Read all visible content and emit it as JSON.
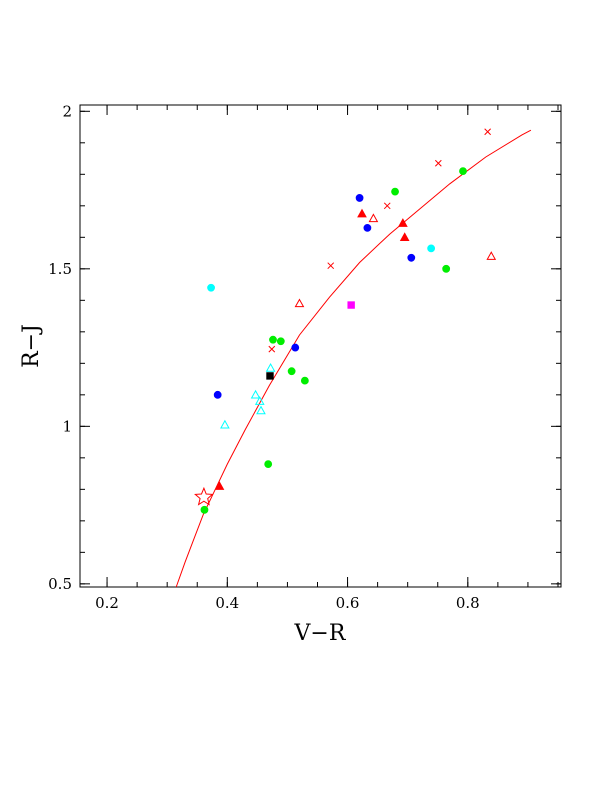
{
  "chart_data": {
    "type": "scatter",
    "xlabel": "V−R",
    "ylabel": "R−J",
    "xlim": [
      0.155,
      0.955
    ],
    "ylim": [
      0.49,
      2.02
    ],
    "x_ticks": [
      {
        "value": 0.2,
        "label": "0.2"
      },
      {
        "value": 0.4,
        "label": "0.4"
      },
      {
        "value": 0.6,
        "label": "0.6"
      },
      {
        "value": 0.8,
        "label": "0.8"
      }
    ],
    "y_ticks": [
      {
        "value": 0.5,
        "label": "0.5"
      },
      {
        "value": 1.0,
        "label": "1"
      },
      {
        "value": 1.5,
        "label": "1.5"
      },
      {
        "value": 2.0,
        "label": "2"
      }
    ],
    "x_minor_step": 0.05,
    "y_minor_step": 0.1,
    "colors": {
      "red": "#ff0000",
      "green": "#00ee00",
      "blue": "#0000ff",
      "cyan": "#00ffff",
      "magenta": "#ff00ff",
      "black": "#000000"
    },
    "curve": {
      "color": "#ff0000",
      "points": [
        [
          0.315,
          0.49
        ],
        [
          0.33,
          0.57
        ],
        [
          0.345,
          0.645
        ],
        [
          0.36,
          0.72
        ],
        [
          0.38,
          0.8
        ],
        [
          0.4,
          0.88
        ],
        [
          0.43,
          0.99
        ],
        [
          0.47,
          1.13
        ],
        [
          0.52,
          1.29
        ],
        [
          0.57,
          1.41
        ],
        [
          0.62,
          1.52
        ],
        [
          0.67,
          1.61
        ],
        [
          0.72,
          1.69
        ],
        [
          0.77,
          1.77
        ],
        [
          0.83,
          1.855
        ],
        [
          0.89,
          1.925
        ],
        [
          0.905,
          1.94
        ]
      ],
      "cross_markers": [
        [
          0.474,
          1.245
        ],
        [
          0.572,
          1.51
        ],
        [
          0.666,
          1.7
        ],
        [
          0.751,
          1.835
        ],
        [
          0.833,
          1.935
        ]
      ]
    },
    "series": [
      {
        "marker": "circle",
        "color": "green",
        "filled": true,
        "points": [
          [
            0.362,
            0.735
          ],
          [
            0.468,
            0.88
          ],
          [
            0.476,
            1.275
          ],
          [
            0.489,
            1.27
          ],
          [
            0.507,
            1.175
          ],
          [
            0.529,
            1.145
          ],
          [
            0.679,
            1.745
          ],
          [
            0.764,
            1.5
          ],
          [
            0.792,
            1.81
          ]
        ]
      },
      {
        "marker": "circle",
        "color": "blue",
        "filled": true,
        "points": [
          [
            0.384,
            1.1
          ],
          [
            0.513,
            1.25
          ],
          [
            0.62,
            1.725
          ],
          [
            0.633,
            1.63
          ],
          [
            0.706,
            1.535
          ]
        ]
      },
      {
        "marker": "circle",
        "color": "cyan",
        "filled": true,
        "points": [
          [
            0.373,
            1.44
          ],
          [
            0.739,
            1.565
          ]
        ]
      },
      {
        "marker": "triangle",
        "color": "red",
        "filled": true,
        "points": [
          [
            0.387,
            0.81
          ],
          [
            0.624,
            1.675
          ],
          [
            0.692,
            1.645
          ],
          [
            0.695,
            1.6
          ]
        ]
      },
      {
        "marker": "triangle",
        "color": "red",
        "filled": false,
        "points": [
          [
            0.52,
            1.39
          ],
          [
            0.643,
            1.66
          ],
          [
            0.839,
            1.54
          ]
        ]
      },
      {
        "marker": "triangle",
        "color": "cyan",
        "filled": false,
        "points": [
          [
            0.396,
            1.005
          ],
          [
            0.447,
            1.1
          ],
          [
            0.454,
            1.08
          ],
          [
            0.456,
            1.05
          ],
          [
            0.472,
            1.185
          ]
        ]
      },
      {
        "marker": "square",
        "color": "black",
        "filled": true,
        "points": [
          [
            0.471,
            1.16
          ]
        ]
      },
      {
        "marker": "square",
        "color": "magenta",
        "filled": true,
        "points": [
          [
            0.606,
            1.385
          ]
        ]
      },
      {
        "marker": "star",
        "color": "red",
        "filled": false,
        "points": [
          [
            0.361,
            0.775
          ]
        ]
      }
    ]
  }
}
